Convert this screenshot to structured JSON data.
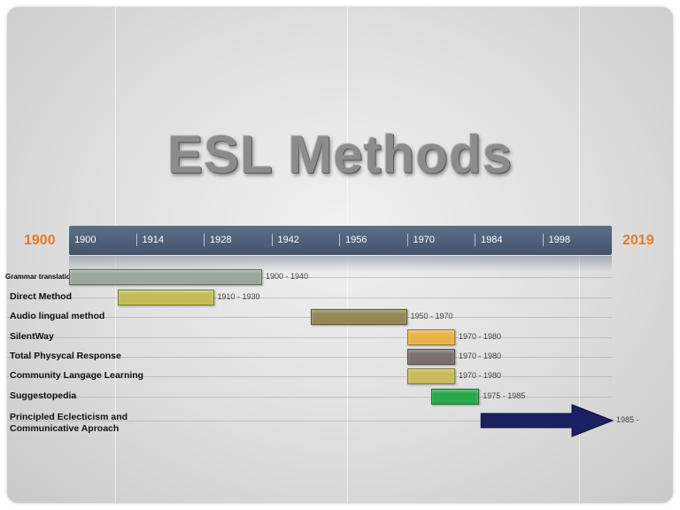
{
  "title": "ESL Methods",
  "timeline": {
    "start_label": "1900",
    "end_label": "2019",
    "ticks": [
      "1900",
      "1914",
      "1928",
      "1942",
      "1956",
      "1970",
      "1984",
      "1998"
    ]
  },
  "colors": {
    "band": "#4f6178",
    "accent": "#e07b2a"
  },
  "chart_data": {
    "type": "gantt",
    "x_range": [
      1900,
      2012
    ],
    "x_ticks": [
      1900,
      1914,
      1928,
      1942,
      1956,
      1970,
      1984,
      1998
    ],
    "tasks": [
      {
        "name": "Grammar translation",
        "start": 1900,
        "end": 1940,
        "range_label": "1900 - 1940",
        "color": "#9aa79b"
      },
      {
        "name": "Direct Method",
        "start": 1910,
        "end": 1930,
        "range_label": "1910 - 1930",
        "color": "#c3bb55"
      },
      {
        "name": "Audio lingual method",
        "start": 1950,
        "end": 1970,
        "range_label": "1950 - 1970",
        "color": "#8f8a55"
      },
      {
        "name": "SilentWay",
        "start": 1970,
        "end": 1980,
        "range_label": "1970 - 1980",
        "color": "#e8b44a"
      },
      {
        "name": "Total Physycal Response",
        "start": 1970,
        "end": 1980,
        "range_label": "1970 - 1980",
        "color": "#7d6f6f"
      },
      {
        "name": "Community Langage Learning",
        "start": 1970,
        "end": 1980,
        "range_label": "1970 - 1980",
        "color": "#c7bb5a"
      },
      {
        "name": "Suggestopedia",
        "start": 1975,
        "end": 1985,
        "range_label": "1975 - 1985",
        "color": "#2aa84a"
      },
      {
        "name": "Principled Eclecticism and Communicative Aproach",
        "start": 1985,
        "end": null,
        "range_label": "1985 -",
        "color": "#1b2060",
        "open_ended": true
      }
    ]
  }
}
